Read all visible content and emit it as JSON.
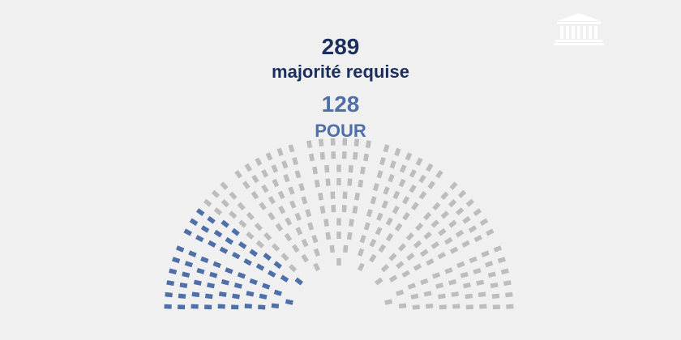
{
  "icons": {
    "logo": "assemblee-nationale-building-icon"
  },
  "vote": {
    "majority_count": "289",
    "majority_label": "majorité requise",
    "pour_count": "128",
    "pour_label": "POUR"
  },
  "hemicycle": {
    "rows": 10,
    "sectors": 7,
    "pour_share": 0.22
  },
  "colors": {
    "background": "#f0f0f0",
    "majority_text": "#1c2f5c",
    "pour_text": "#4f6fa8",
    "seat_pour": "#4f6fa8",
    "seat_other": "#bdbdbd",
    "logo": "#ffffff"
  }
}
